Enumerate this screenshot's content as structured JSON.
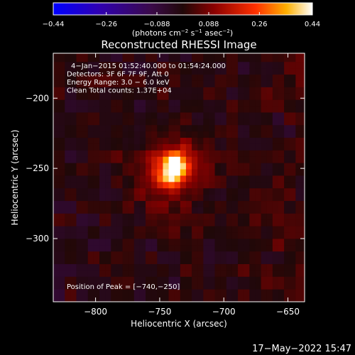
{
  "chart_data": {
    "type": "heatmap",
    "title": "Reconstructed RHESSI Image",
    "xlabel": "Heliocentric X (arcsec)",
    "ylabel": "Heliocentric Y (arcsec)",
    "xlim": [
      -833,
      -637
    ],
    "ylim": [
      -345,
      -168
    ],
    "x_ticks": [
      -800,
      -750,
      -700,
      -650
    ],
    "x_tick_labels": [
      "−800",
      "−750",
      "−700",
      "−650"
    ],
    "y_ticks": [
      -200,
      -250,
      -300
    ],
    "y_tick_labels": [
      "−200",
      "−250",
      "−300"
    ],
    "colorbar": {
      "min": -0.44,
      "max": 0.44,
      "ticks": [
        -0.44,
        -0.26,
        -0.088,
        0.088,
        0.26,
        0.44
      ],
      "tick_labels": [
        "−0.44",
        "−0.26",
        "−0.088",
        "0.088",
        "0.26",
        "0.44"
      ],
      "units_prefix": "(photons cm",
      "units_sup1": "−2",
      "units_mid1": " s",
      "units_sup2": "−1",
      "units_mid2": " asec",
      "units_sup3": "−2",
      "units_suffix": ")"
    },
    "source": {
      "peak_position": [
        -740,
        -250
      ],
      "peak_value": 0.44,
      "core_sigma_arcsec": [
        9,
        7
      ],
      "halo_sigma_arcsec": [
        22,
        20
      ],
      "rotation_deg": 40
    },
    "info_lines": [
      "4−Jan−2015 01:52:40.000 to 01:54:24.000",
      "Detectors: 3F 6F 7F 9F, Att 0",
      "Energy Range: 3.0 − 6.0 keV",
      "Clean    Total counts: 1.37E+04"
    ],
    "peak_label": "Position of Peak = [−740,−250]",
    "timestamp": "17−May−2022 15:47"
  }
}
